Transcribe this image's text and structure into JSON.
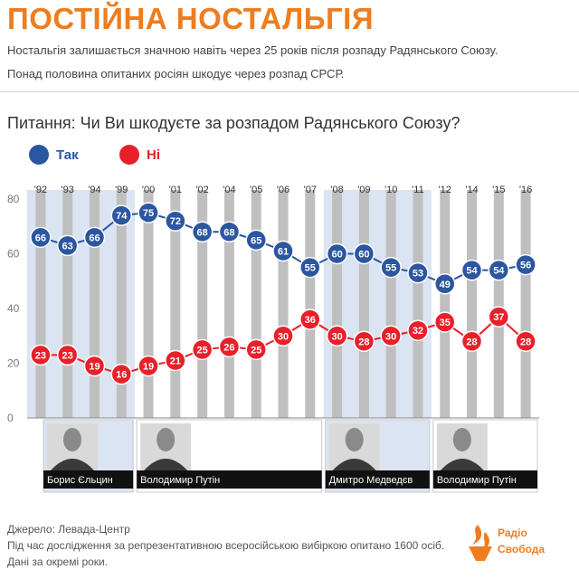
{
  "header": {
    "title": "ПОСТІЙНА НОСТАЛЬГІЯ",
    "subtitle1": "Ностальгія залишається значною навіть через 25 років після розпаду Радянського Союзу.",
    "subtitle2": "Понад половина опитаних росіян шкодує через розпад СРСР."
  },
  "question": "Питання: Чи Ви шкодуєте за розпадом Радянського Союзу?",
  "colors": {
    "yes": "#2b56a0",
    "no": "#e8202a",
    "accent": "#ee7d1e",
    "era_shade": "#dbe4f2",
    "bar": "#bfbfbf"
  },
  "chart_data": {
    "type": "line",
    "title": "Чи Ви шкодуєте за розпадом Радянського Союзу?",
    "categories": [
      "'92",
      "'93",
      "'94",
      "'99",
      "'00",
      "'01",
      "'02",
      "'04",
      "'05",
      "'06",
      "'07",
      "'08",
      "'09",
      "'10",
      "'11",
      "'12",
      "'14",
      "'15",
      "'16"
    ],
    "series": [
      {
        "name": "Так",
        "values": [
          66,
          63,
          66,
          74,
          75,
          72,
          68,
          68,
          65,
          61,
          55,
          60,
          60,
          55,
          53,
          49,
          54,
          54,
          56
        ]
      },
      {
        "name": "Ні",
        "values": [
          23,
          23,
          19,
          16,
          19,
          21,
          25,
          26,
          25,
          30,
          36,
          30,
          28,
          30,
          32,
          35,
          28,
          37,
          28
        ]
      }
    ],
    "yticks": [
      0,
      20,
      40,
      60,
      80
    ],
    "ylim": [
      0,
      80
    ],
    "legend": "top-left",
    "eras": [
      {
        "leader": "Борис Єльцин",
        "from": "'92",
        "to": "'99",
        "shaded": true
      },
      {
        "leader": "Володимир Путін",
        "from": "'00",
        "to": "'07",
        "shaded": false
      },
      {
        "leader": "Дмитро Медведєв",
        "from": "'08",
        "to": "'11",
        "shaded": true
      },
      {
        "leader": "Володимир Путін",
        "from": "'12",
        "to": "'16",
        "shaded": false
      }
    ]
  },
  "footer": {
    "source": "Джерело: Левада-Центр",
    "note1": "Під час дослідження за репрезентативною всеросійською вибіркою опитано 1600 осіб.",
    "note2": "Дані за окремі роки."
  },
  "logo": {
    "line1": "Радіо",
    "line2": "Свобода"
  }
}
